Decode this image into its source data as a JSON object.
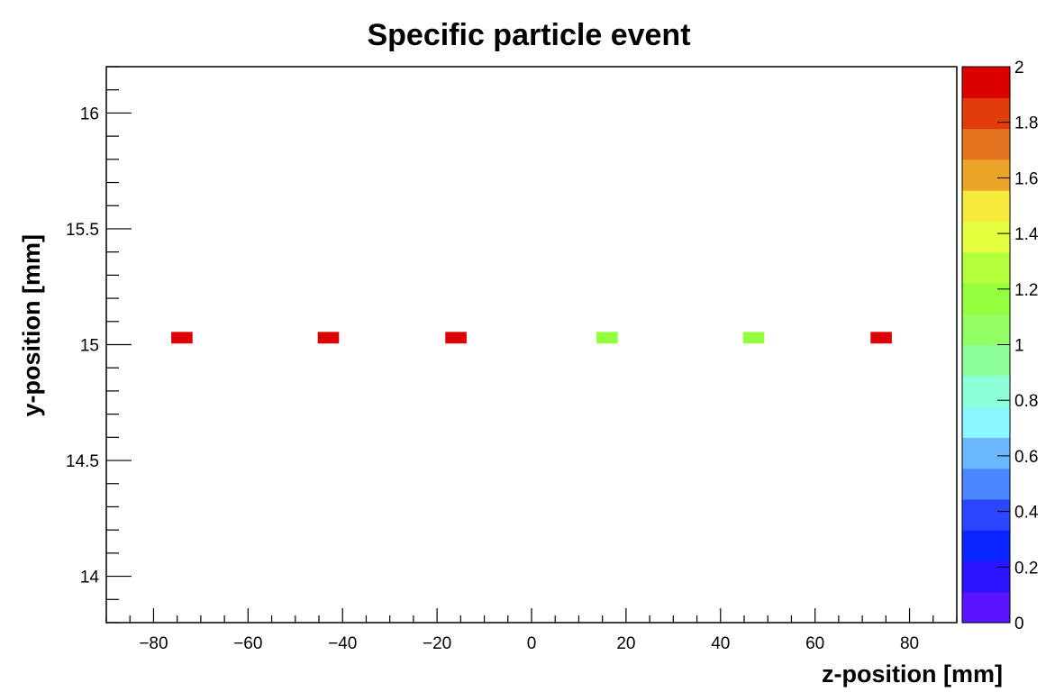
{
  "chart_data": {
    "type": "heatmap",
    "title": "Specific particle event",
    "xlabel": "z-position [mm]",
    "ylabel": "y-position [mm]",
    "xlim": [
      -90,
      90
    ],
    "ylim": [
      13.8,
      16.2
    ],
    "xticks": [
      -80,
      -60,
      -40,
      -20,
      0,
      20,
      40,
      60,
      80
    ],
    "xtick_labels": [
      "−80",
      "−60",
      "−40",
      "−20",
      "0",
      "20",
      "40",
      "60",
      "80"
    ],
    "yticks": [
      14,
      14.5,
      15,
      15.5,
      16
    ],
    "ytick_labels": [
      "14",
      "14.5",
      "15",
      "15.5",
      "16"
    ],
    "bin_width": 4.5,
    "bin_height": 0.05,
    "points": [
      {
        "z": -74,
        "y": 15.03,
        "value": 2
      },
      {
        "z": -43,
        "y": 15.03,
        "value": 2
      },
      {
        "z": -16,
        "y": 15.03,
        "value": 2
      },
      {
        "z": 16,
        "y": 15.03,
        "value": 1.2
      },
      {
        "z": 47,
        "y": 15.03,
        "value": 1.2
      },
      {
        "z": 74,
        "y": 15.03,
        "value": 2
      }
    ],
    "colorbar": {
      "range": [
        0,
        2
      ],
      "ticks": [
        0,
        0.2,
        0.4,
        0.6,
        0.8,
        1,
        1.2,
        1.4,
        1.6,
        1.8,
        2
      ],
      "tick_labels": [
        "0",
        "0.2",
        "0.4",
        "0.6",
        "0.8",
        "1",
        "1.2",
        "1.4",
        "1.6",
        "1.8",
        "2"
      ],
      "colors": [
        "#5a14ff",
        "#2b14ff",
        "#0a24ff",
        "#2a47ff",
        "#4a86ff",
        "#6ab6ff",
        "#8cf6ff",
        "#8cffd8",
        "#8cff9a",
        "#94ff64",
        "#94ff3c",
        "#b4ff3c",
        "#e4ff3c",
        "#f8ea3c",
        "#eaa528",
        "#e47420",
        "#e03c0c",
        "#dc0000"
      ]
    },
    "grid": false,
    "legend": "none"
  }
}
